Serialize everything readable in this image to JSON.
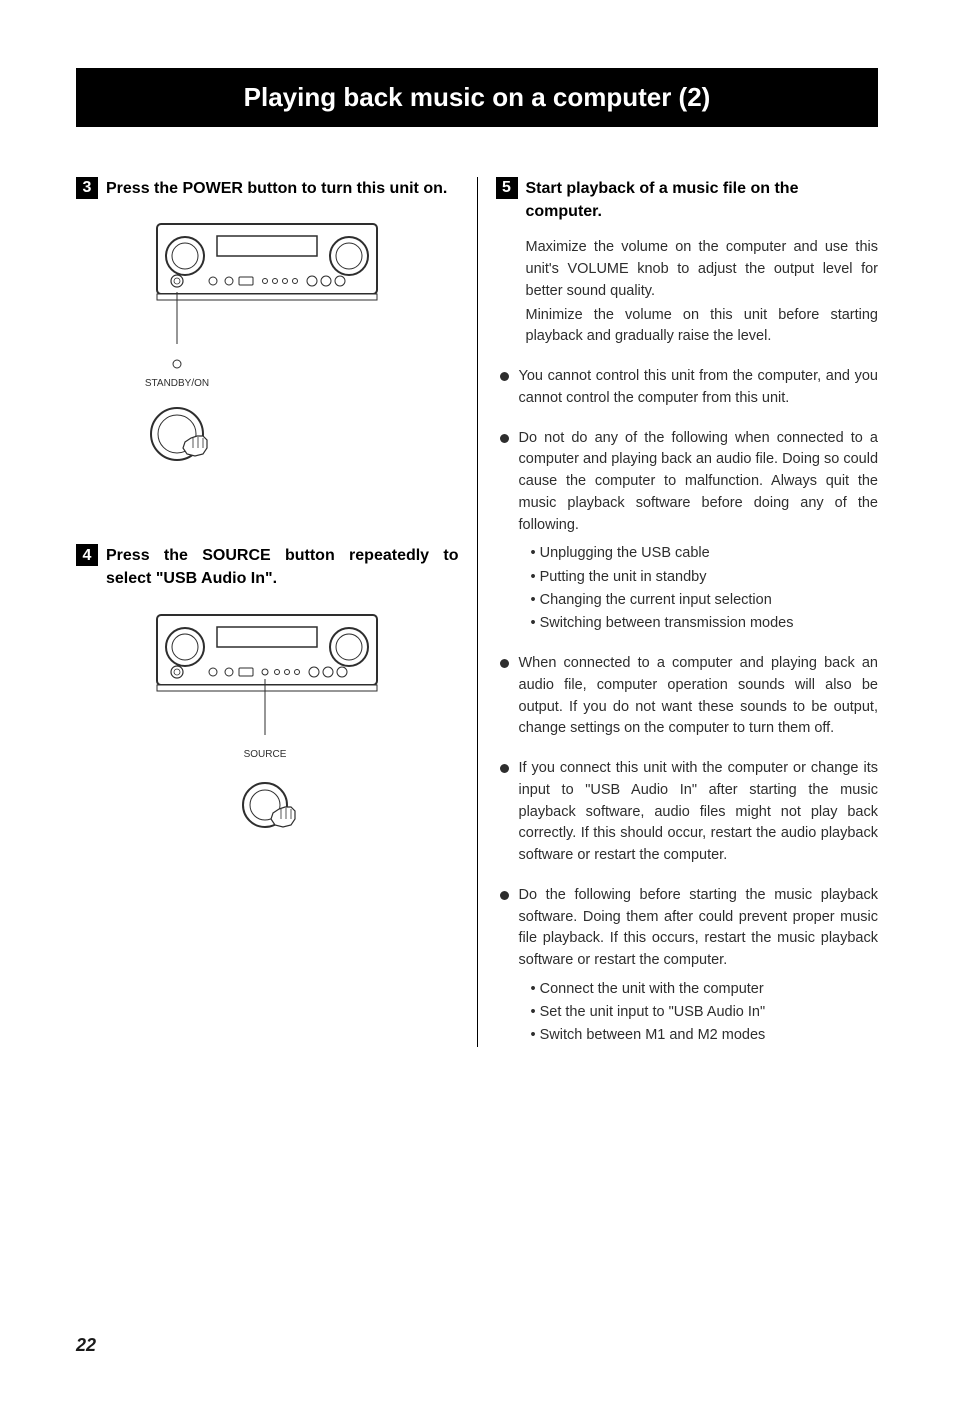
{
  "title": "Playing back music on a computer (2)",
  "page_number": "22",
  "left": {
    "step3": {
      "num": "3",
      "heading": "Press the POWER button to turn this unit on.",
      "label": "STANDBY/ON"
    },
    "step4": {
      "num": "4",
      "heading": "Press the SOURCE button repeatedly to select \"USB Audio In\".",
      "label": "SOURCE"
    }
  },
  "right": {
    "step5": {
      "num": "5",
      "heading": "Start playback of a music file on the computer.",
      "p1": "Maximize the volume on the computer and use this unit's VOLUME knob to adjust the output level for better sound quality.",
      "p2": "Minimize the volume on this unit before starting playback and gradually raise the level."
    },
    "bullets": [
      {
        "text": "You cannot control this unit from the computer, and you cannot control the computer from this unit."
      },
      {
        "text": "Do not do any of the following when connected to a computer and playing back an audio file. Doing so could cause the computer to malfunction. Always quit the music playback software before doing any of the following.",
        "sub": [
          "Unplugging the USB cable",
          "Putting the unit in standby",
          "Changing the current input selection",
          "Switching between transmission modes"
        ]
      },
      {
        "text": "When connected to a computer and playing back an audio file, computer operation sounds will also be output. If you do not want these sounds to be output, change settings on the computer to turn them off."
      },
      {
        "text": "If you connect this unit with the computer or change its input to \"USB Audio In\" after starting the music playback software, audio files might not play back correctly. If this should occur, restart the audio playback software or restart the computer."
      },
      {
        "text": "Do the following before starting the music playback software. Doing them after could prevent proper music file playback. If this occurs, restart the music playback software or restart the computer.",
        "sub": [
          "Connect the unit with the computer",
          "Set the unit input to \"USB Audio In\"",
          "Switch between M1 and M2 modes"
        ]
      }
    ]
  },
  "svg": {
    "panel_stroke": "#2e2e2e",
    "panel_fill": "#ffffff",
    "knob_stroke": "#2e2e2e"
  }
}
